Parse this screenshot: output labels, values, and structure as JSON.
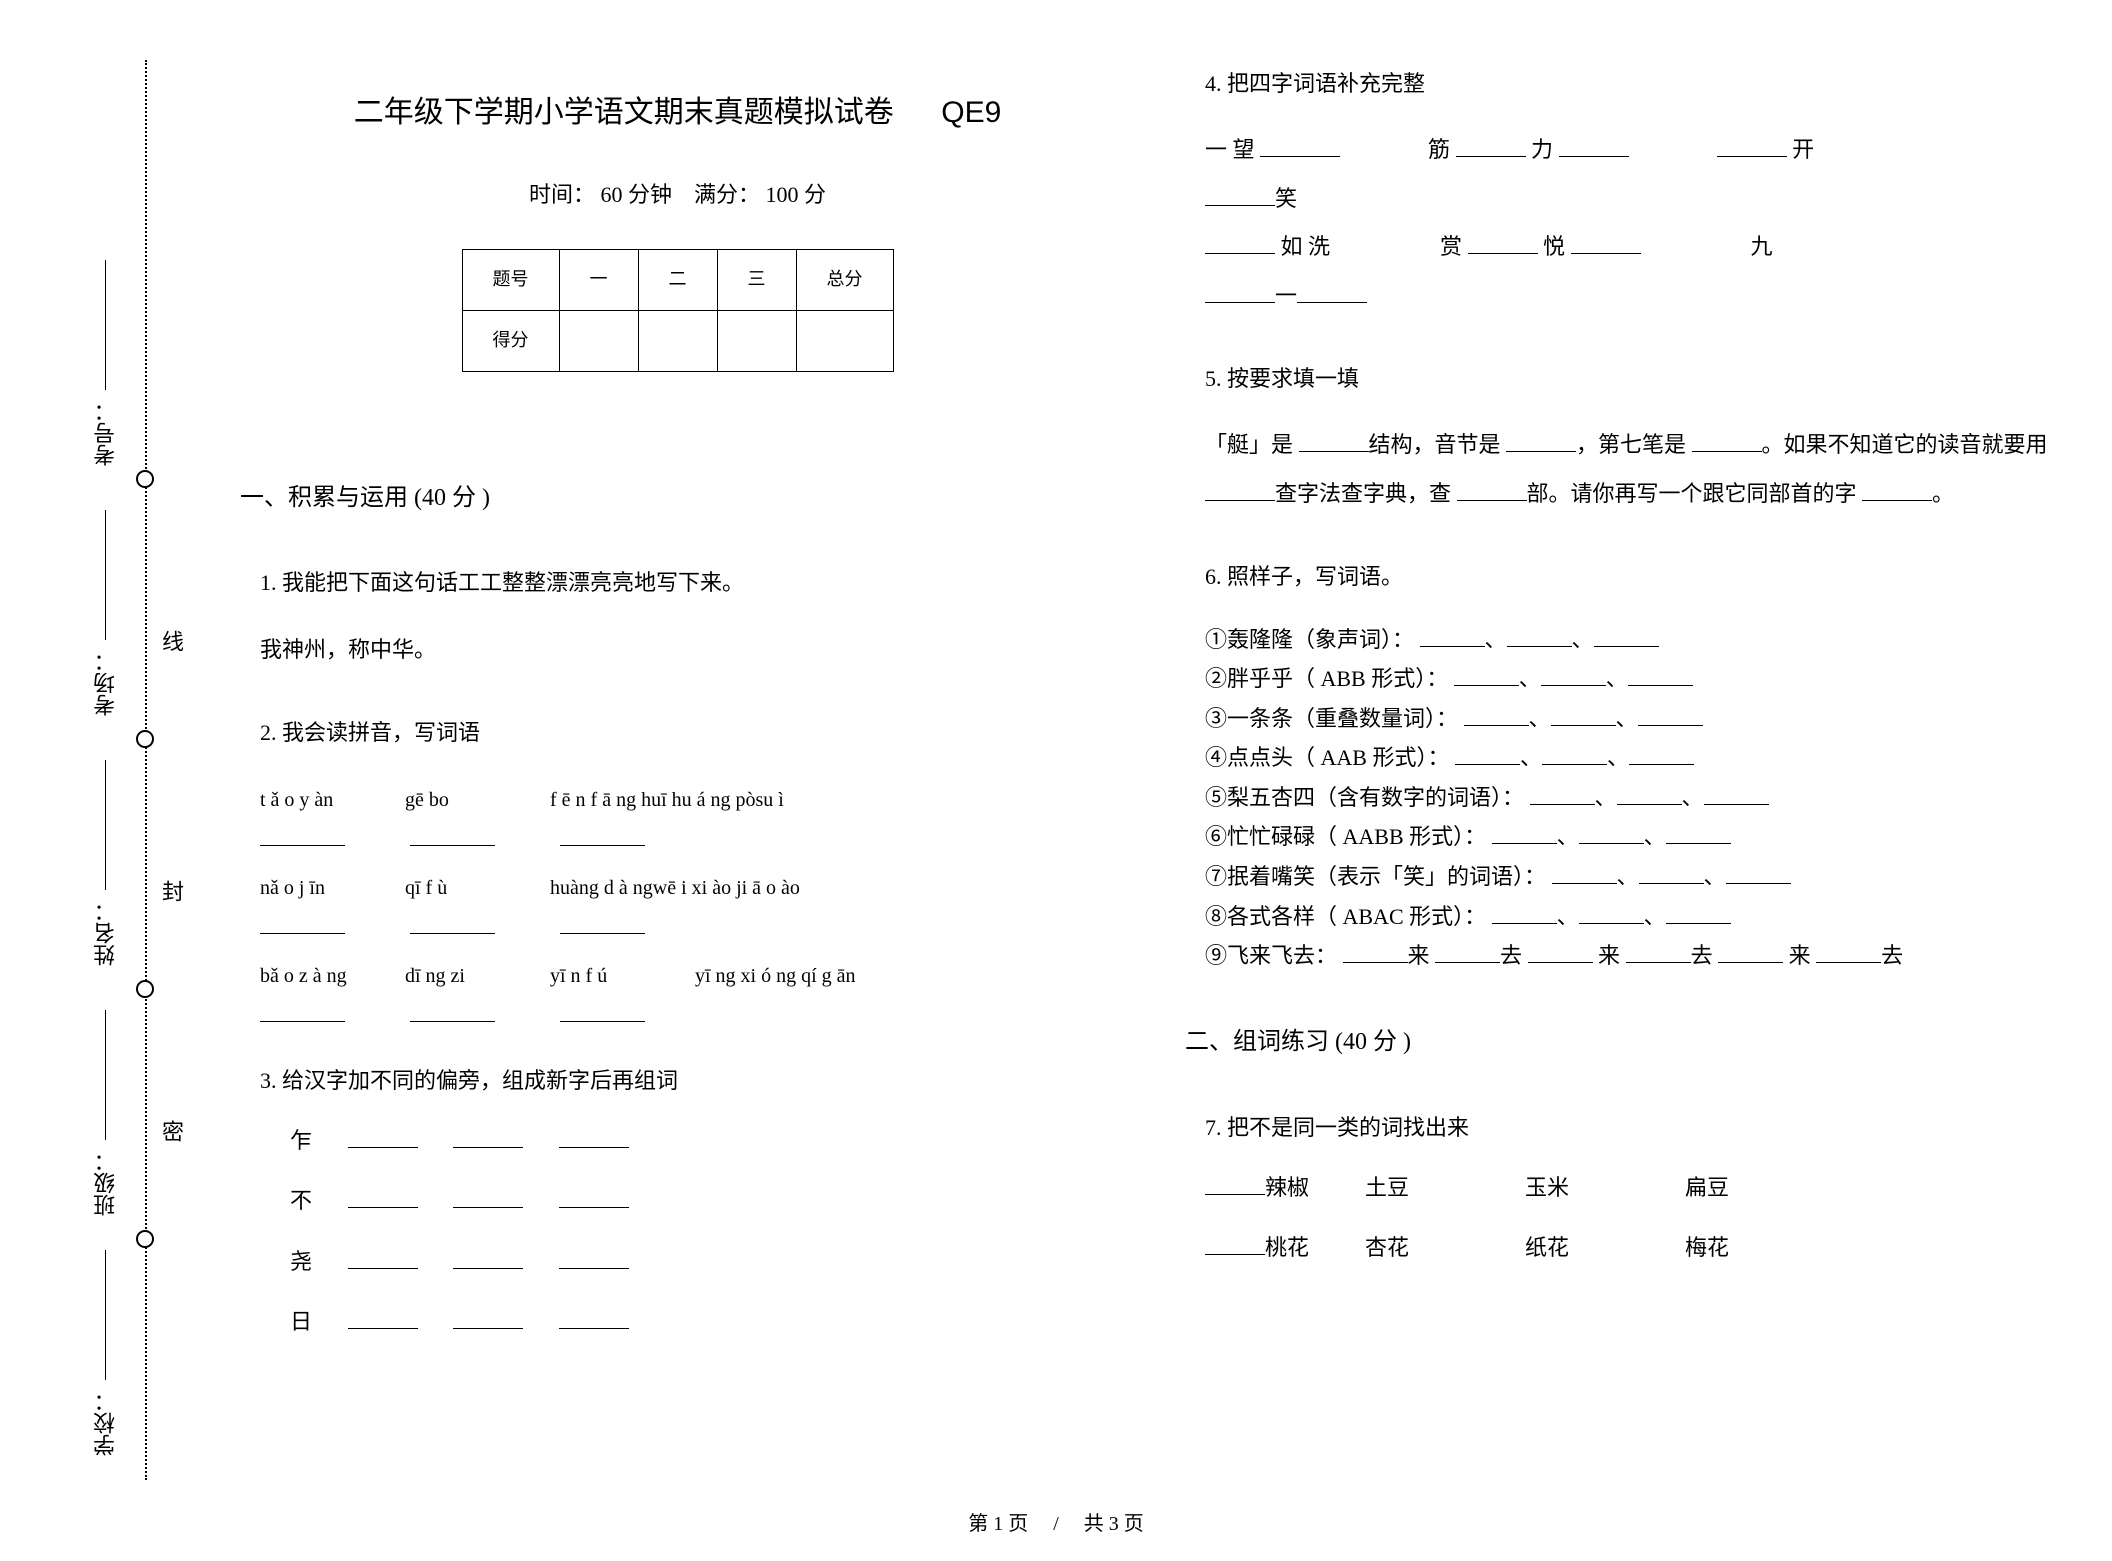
{
  "binding": {
    "labels": [
      "考号：",
      "考场：",
      "姓名：",
      "班级：",
      "学校："
    ],
    "markers": [
      "线",
      "封",
      "密"
    ]
  },
  "header": {
    "title": "二年级下学期小学语文期末真题模拟试卷",
    "code": "QE9",
    "subtitle": "时间： 60 分钟　满分： 100 分"
  },
  "score_table": {
    "headers": [
      "题号",
      "一",
      "二",
      "三",
      "总分"
    ],
    "row_label": "得分"
  },
  "section1": {
    "title": "一、积累与运用  (40 分 )",
    "q1_stem": "1.  我能把下面这句话工工整整漂漂亮亮地写下来。",
    "q1_text": "我神州，称中华。",
    "q2_stem": "2.  我会读拼音，写词语",
    "pinyin_rows": [
      [
        "t ǎ o y àn",
        "gē bo",
        "f ē n f ā ng  huī hu á ng pòsu ì"
      ],
      [
        "nǎ o j īn",
        "qī f ù",
        "huàng d à ngwē i xi ào  ji ā o ào"
      ],
      [
        "bǎ o z à ng",
        "dī ng zi",
        "yī n f ú",
        "yī ng xi ó ng qí g ān"
      ]
    ],
    "q3_stem": "3.  给汉字加不同的偏旁，组成新字后再组词",
    "radicals": [
      "乍",
      "不",
      "尧",
      "日"
    ]
  },
  "right_col": {
    "q4_stem": "4.  把四字词语补充完整",
    "q4_lines": [
      [
        {
          "t": "一 望 "
        },
        {
          "b": 80
        },
        {
          "t": "　　　　筋 "
        },
        {
          "b": 70
        },
        {
          "t": " 力 "
        },
        {
          "b": 70
        },
        {
          "t": "　　　　"
        },
        {
          "b": 70
        },
        {
          "t": " 开"
        }
      ],
      [
        {
          "b": 70
        },
        {
          "t": "笑"
        }
      ],
      [
        {
          "b": 70
        },
        {
          "t": " 如  洗　　　　　赏  "
        },
        {
          "b": 70
        },
        {
          "t": "  悦  "
        },
        {
          "b": 70
        },
        {
          "t": "　　　　　九"
        }
      ],
      [
        {
          "b": 70
        },
        {
          "t": "一"
        },
        {
          "b": 70
        }
      ]
    ],
    "q5_stem": "5.  按要求填一填",
    "q5_body": " 「艇」是 ______结构，音节是 ______，第七笔是 ______。如果不知道它的读音就要用 ______查字法查字典，查 ______部。请你再写一个跟它同部首的字 ______。",
    "q6_stem": "6.  照样子，写词语。",
    "q6_items": [
      "①轰隆隆（象声词）： ______、______、______",
      "②胖乎乎（ ABB 形式）： ______、______、______",
      "③一条条（重叠数量词）： ______、______、______",
      "④点点头（ AAB 形式）： ______、______、______",
      "⑤梨五杏四（含有数字的词语）：  ______、______、______",
      "⑥忙忙碌碌（ AABB 形式）： ______、______、______",
      "⑦抿着嘴笑（表示「笑」的词语）：  ______、______、______",
      "⑧各式各样（ ABAC 形式）：  ______、______、______",
      "⑨飞来飞去：  ______来 ______去 ______ 来 ______去 ______ 来 ______去"
    ],
    "section2_title": "二、组词练习  (40 分 )",
    "q7_stem": "7.  把不是同一类的词找出来",
    "q7_rows": [
      [
        "______辣椒",
        "土豆",
        "玉米",
        "扁豆"
      ],
      [
        "______桃花",
        "杏花",
        "纸花",
        "梅花"
      ]
    ]
  },
  "footer": "第 1 页　 / 　共 3 页",
  "colors": {
    "text": "#000000",
    "bg": "#ffffff",
    "border": "#000000"
  }
}
